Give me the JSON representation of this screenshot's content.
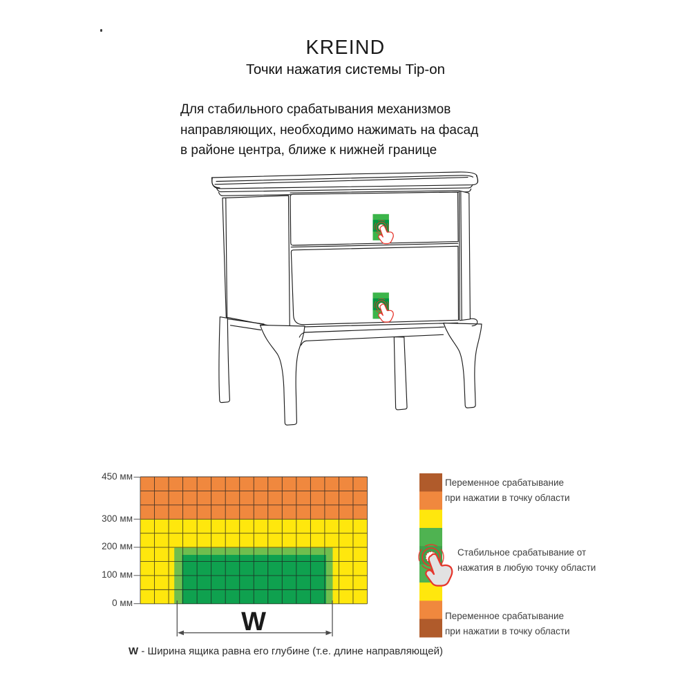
{
  "page": {
    "stray_mark": "."
  },
  "header": {
    "brand": "KREIND",
    "subtitle": "Точки нажатия системы Tip-on"
  },
  "description": {
    "lines": [
      "Для стабильного срабатывания механизмов",
      "направляющих, необходимо нажимать на фасад",
      "в районе центра, ближе к нижней границе"
    ]
  },
  "chart_data": {
    "type": "heatmap",
    "y_ticks": [
      "450 мм",
      "300 мм",
      "200 мм",
      "100 мм",
      "0 мм"
    ],
    "y_unit": "мм",
    "ylim": [
      0,
      450
    ],
    "cell_size_mm": 50,
    "grid": {
      "columns": 16,
      "rows": 9,
      "lines": "on"
    },
    "zones": [
      {
        "height_range_mm": [
          300,
          450
        ],
        "color": "#F0883E",
        "reliability": "Переменное срабатывание при нажатии в точку области"
      },
      {
        "height_range_mm": [
          200,
          300
        ],
        "color": "#FFE70D",
        "reliability": "Переменное срабатывание при нажатии в точку области"
      },
      {
        "height_range_mm": [
          0,
          200
        ],
        "color": "#0FA14F",
        "width": "W",
        "reliability": "Стабильное срабатывание от нажатия в любую точку области"
      }
    ],
    "width_dimension_label": "W",
    "caption": {
      "bold": "W",
      "rest": " - Ширина ящика равна его глубине (т.е. длине направляющей)"
    }
  },
  "legend": {
    "bar_colors": [
      "#B05B2B",
      "#F0883E",
      "#FFE70D",
      "#4FB351",
      "#3FA04A",
      "#4FB351",
      "#FFE70D",
      "#F0883E",
      "#B05B2B"
    ],
    "entries": [
      {
        "lines": [
          "Переменное срабатывание",
          "при нажатии в точку области"
        ]
      },
      {
        "lines": [
          "Стабильное срабатывание от",
          "нажатия в любую точку области"
        ]
      },
      {
        "lines": [
          "Переменное срабатывание",
          "при нажатии в точку области"
        ]
      }
    ]
  },
  "icons": {
    "press_hand": "tap-hand-icon",
    "press_points_on_cabinet": 2
  },
  "palette": {
    "orange": "#F0883E",
    "yellow": "#FFE70D",
    "green_dark": "#0FA14F",
    "green_light": "#6FBE4E",
    "brown": "#B05B2B",
    "legend_green": "#4FB351",
    "legend_green_mid": "#3FA04A",
    "indicator_green": "#3CB54A",
    "indicator_green_dark": "#00963F",
    "hand_red": "#E6362C",
    "ink": "#1B1B1B"
  }
}
